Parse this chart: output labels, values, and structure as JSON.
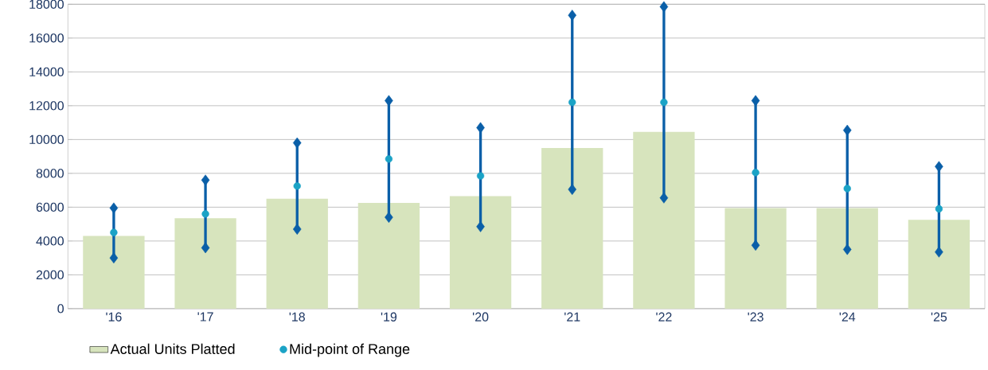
{
  "chart_data": {
    "type": "bar",
    "categories": [
      "'16",
      "'17",
      "'18",
      "'19",
      "'20",
      "'21",
      "'22",
      "'23",
      "'24",
      "'25"
    ],
    "series": [
      {
        "name": "Actual Units Platted",
        "color": "#d7e4bd",
        "values": [
          4300,
          5350,
          6500,
          6250,
          6650,
          9500,
          10450,
          5950,
          5950,
          5250
        ]
      },
      {
        "name": "Mid-point of Range",
        "type": "scatter",
        "color": "#1ba3c6",
        "marker": "circle",
        "values": [
          4500,
          5600,
          7250,
          8850,
          7850,
          12200,
          12200,
          8050,
          7100,
          5900
        ],
        "errors": [
          [
            3000,
            5950
          ],
          [
            3600,
            7600
          ],
          [
            4700,
            9800
          ],
          [
            5400,
            12300
          ],
          [
            4850,
            10700
          ],
          [
            7050,
            17350
          ],
          [
            6550,
            17850
          ],
          [
            3750,
            12300
          ],
          [
            3500,
            10550
          ],
          [
            3350,
            8400
          ]
        ]
      },
      {
        "type": "scatter",
        "color": "#0a5fa8",
        "marker": "diamond",
        "x": [
          "'16",
          "'17",
          "'18",
          "'19",
          "'20",
          "'21",
          "'22",
          "'23",
          "'24",
          "'25",
          "'16",
          "'17",
          "'18",
          "'19",
          "'20",
          "'21",
          "'22",
          "'23",
          "'24",
          "'25"
        ],
        "values": [
          5950,
          7600,
          9800,
          12300,
          10700,
          17350,
          17850,
          12300,
          10550,
          8400,
          3000,
          3600,
          4700,
          5400,
          4850,
          7050,
          6550,
          3750,
          3500,
          3350
        ]
      }
    ],
    "ylim": [
      0,
      18000
    ],
    "yticks": [
      0,
      2000,
      4000,
      6000,
      8000,
      10000,
      12000,
      14000,
      16000,
      18000
    ],
    "grid": "y",
    "legend": "bottom"
  }
}
